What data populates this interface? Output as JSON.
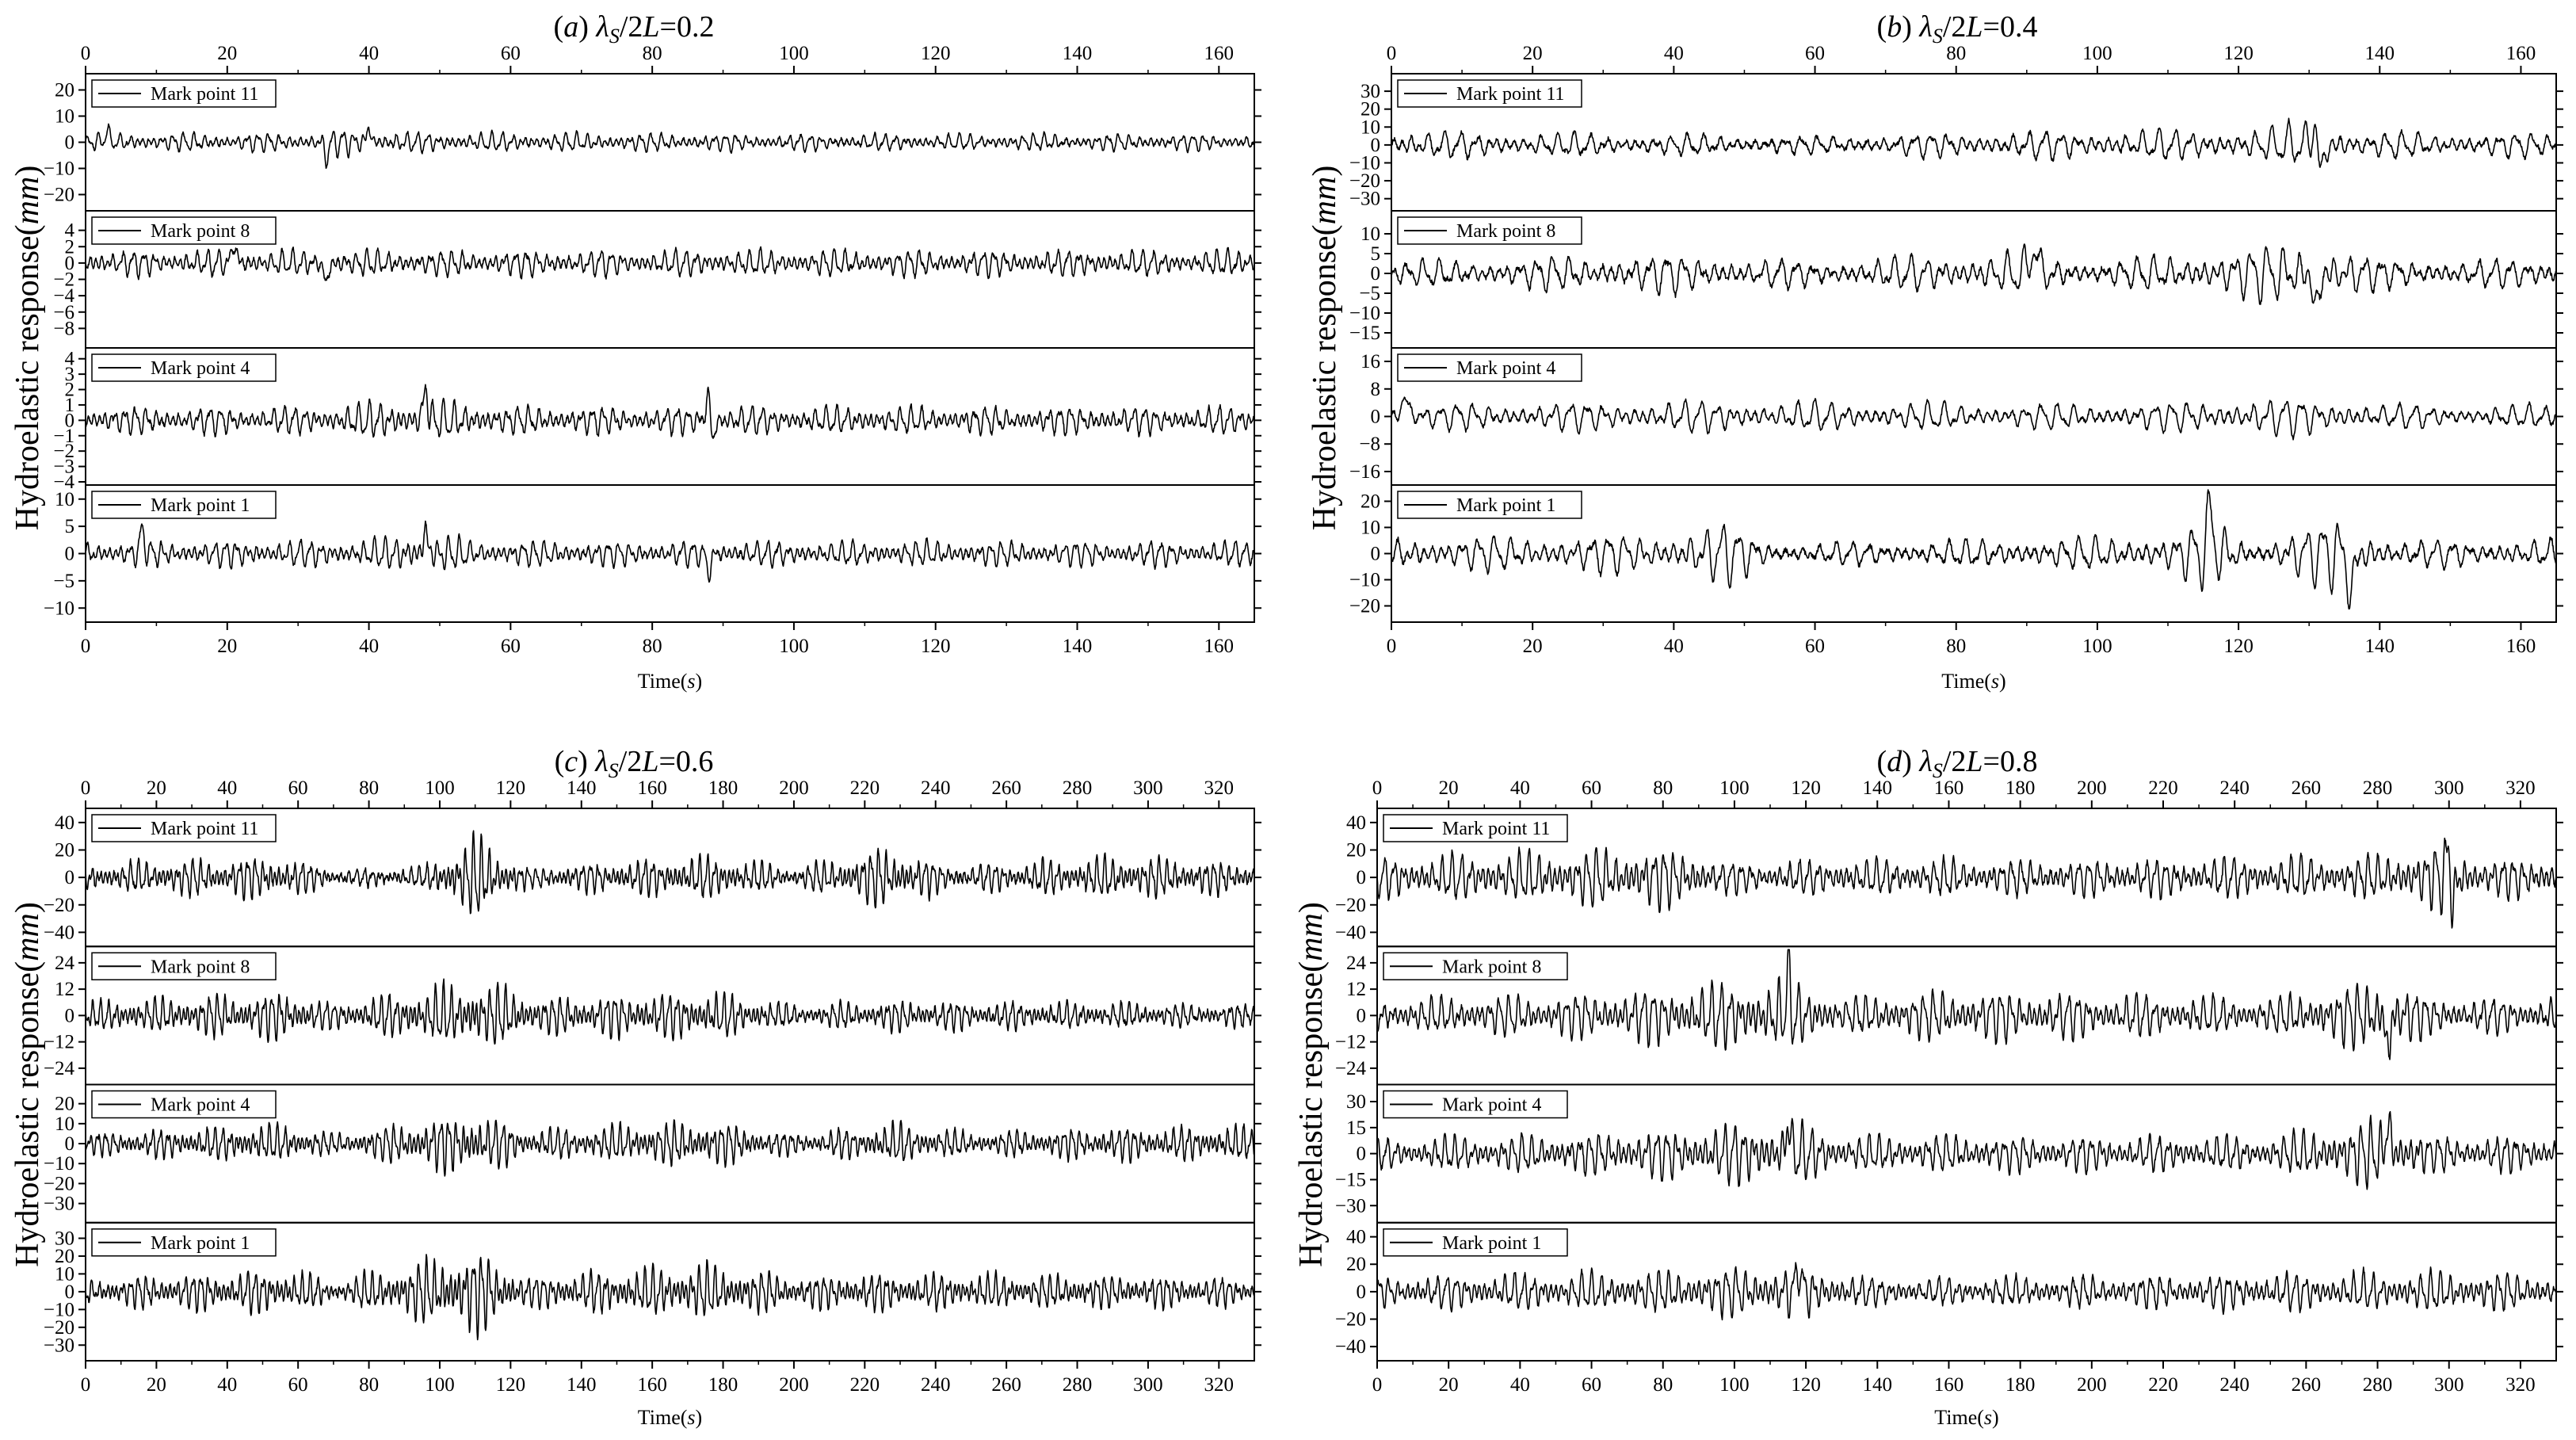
{
  "figure": {
    "y_label_text": "Hydroelastic response",
    "y_label_unit": "mm",
    "x_label_text": "Time",
    "x_label_unit": "s"
  },
  "chart_data": [
    {
      "type": "line",
      "title": "(a) λS/2L=0.2",
      "title_parts": {
        "letter": "a",
        "lambda": "λ",
        "sub": "S",
        "rest": "/2",
        "L": "L",
        "eq": "=0.2"
      },
      "xlabel": "Time(s)",
      "ylabel": "Hydroelastic response(mm)",
      "xlim": [
        0,
        165
      ],
      "xticks": [
        0,
        20,
        40,
        60,
        80,
        100,
        120,
        140,
        160
      ],
      "grid": false,
      "legend_position": "top-left",
      "series": [
        {
          "name": "Mark point 11",
          "ylim": [
            -25,
            25
          ],
          "yticks": [
            -20,
            -10,
            0,
            10,
            20
          ],
          "amplitude": 4,
          "spikes": [
            [
              3,
              6
            ],
            [
              34,
              -8
            ],
            [
              40,
              7
            ]
          ],
          "envelope": [
            [
              0,
              1.0
            ],
            [
              30,
              1.0
            ],
            [
              36,
              1.5
            ],
            [
              45,
              1.1
            ],
            [
              100,
              0.9
            ],
            [
              165,
              0.9
            ]
          ],
          "period": 1.5
        },
        {
          "name": "Mark point 8",
          "ylim": [
            -10,
            6
          ],
          "yticks": [
            -8,
            -6,
            -4,
            -2,
            0,
            2,
            4
          ],
          "amplitude": 1.8,
          "spikes": [
            [
              21,
              3.5
            ],
            [
              34,
              -3.5
            ]
          ],
          "envelope": [
            [
              0,
              1.0
            ],
            [
              165,
              1.0
            ]
          ],
          "period": 1.5
        },
        {
          "name": "Mark point 4",
          "ylim": [
            -4,
            4.5
          ],
          "yticks": [
            -4,
            -3,
            -2,
            -1,
            0,
            1,
            2,
            3,
            4
          ],
          "amplitude": 1.0,
          "spikes": [
            [
              48,
              3
            ],
            [
              88,
              3
            ],
            [
              88.5,
              -2.5
            ]
          ],
          "envelope": [
            [
              0,
              1.0
            ],
            [
              30,
              1.0
            ],
            [
              48,
              1.6
            ],
            [
              60,
              1.0
            ],
            [
              165,
              1.0
            ]
          ],
          "period": 1.5
        },
        {
          "name": "Mark point 1",
          "ylim": [
            -12,
            12
          ],
          "yticks": [
            -10,
            -5,
            0,
            5,
            10
          ],
          "amplitude": 2.6,
          "spikes": [
            [
              8,
              6
            ],
            [
              48,
              6
            ],
            [
              88,
              -5
            ]
          ],
          "envelope": [
            [
              0,
              1.0
            ],
            [
              40,
              1.1
            ],
            [
              48,
              1.8
            ],
            [
              55,
              1.0
            ],
            [
              165,
              1.0
            ]
          ],
          "period": 1.5
        }
      ]
    },
    {
      "type": "line",
      "title": "(b) λS/2L=0.4",
      "title_parts": {
        "letter": "b",
        "lambda": "λ",
        "sub": "S",
        "rest": "/2",
        "L": "L",
        "eq": "=0.4"
      },
      "xlabel": "Time(s)",
      "ylabel": "Hydroelastic response(mm)",
      "xlim": [
        0,
        165
      ],
      "xticks": [
        0,
        20,
        40,
        60,
        80,
        100,
        120,
        140,
        160
      ],
      "grid": false,
      "legend_position": "top-left",
      "series": [
        {
          "name": "Mark point 11",
          "ylim": [
            -35,
            38
          ],
          "yticks": [
            -30,
            -20,
            -10,
            0,
            10,
            20,
            30
          ],
          "amplitude": 9,
          "spikes": [
            [
              131,
              25
            ],
            [
              131.6,
              -30
            ]
          ],
          "envelope": [
            [
              0,
              1.0
            ],
            [
              60,
              0.6
            ],
            [
              80,
              0.9
            ],
            [
              110,
              1.1
            ],
            [
              125,
              1.2
            ],
            [
              131,
              2.0
            ],
            [
              137,
              0.9
            ],
            [
              165,
              0.8
            ]
          ],
          "period": 2.3
        },
        {
          "name": "Mark point 8",
          "ylim": [
            -18,
            15
          ],
          "yticks": [
            -15,
            -10,
            -5,
            0,
            5,
            10
          ],
          "amplitude": 5,
          "spikes": [
            [
              91,
              10
            ],
            [
              131,
              -12
            ]
          ],
          "envelope": [
            [
              0,
              0.7
            ],
            [
              40,
              1.1
            ],
            [
              60,
              0.7
            ],
            [
              90,
              1.3
            ],
            [
              100,
              0.7
            ],
            [
              120,
              1.4
            ],
            [
              131,
              1.9
            ],
            [
              140,
              0.8
            ],
            [
              165,
              0.8
            ]
          ],
          "period": 2.3
        },
        {
          "name": "Mark point 4",
          "ylim": [
            -19,
            19
          ],
          "yticks": [
            -16,
            -8,
            0,
            8,
            16
          ],
          "amplitude": 4,
          "spikes": [
            [
              2,
              8
            ]
          ],
          "envelope": [
            [
              0,
              1.0
            ],
            [
              40,
              1.3
            ],
            [
              100,
              1.0
            ],
            [
              130,
              1.6
            ],
            [
              140,
              1.0
            ],
            [
              165,
              0.9
            ]
          ],
          "period": 2.3
        },
        {
          "name": "Mark point 1",
          "ylim": [
            -25,
            25
          ],
          "yticks": [
            -20,
            -10,
            0,
            10,
            20
          ],
          "amplitude": 7,
          "spikes": [
            [
              116,
              18
            ],
            [
              136,
              -20
            ]
          ],
          "envelope": [
            [
              0,
              1.0
            ],
            [
              40,
              1.2
            ],
            [
              47,
              2.0
            ],
            [
              55,
              0.6
            ],
            [
              100,
              1.0
            ],
            [
              110,
              1.2
            ],
            [
              116,
              2.3
            ],
            [
              122,
              0.6
            ],
            [
              135,
              2.5
            ],
            [
              142,
              0.8
            ],
            [
              165,
              0.9
            ]
          ],
          "period": 2.3
        }
      ]
    },
    {
      "type": "line",
      "title": "(c) λS/2L=0.6",
      "title_parts": {
        "letter": "c",
        "lambda": "λ",
        "sub": "S",
        "rest": "/2",
        "L": "L",
        "eq": "=0.6"
      },
      "xlabel": "Time(s)",
      "ylabel": "Hydroelastic response(mm)",
      "xlim": [
        0,
        330
      ],
      "xticks": [
        0,
        20,
        40,
        60,
        80,
        100,
        120,
        140,
        160,
        180,
        200,
        220,
        240,
        260,
        280,
        300,
        320
      ],
      "grid": false,
      "legend_position": "top-left",
      "series": [
        {
          "name": "Mark point 11",
          "ylim": [
            -48,
            48
          ],
          "yticks": [
            -40,
            -20,
            0,
            20,
            40
          ],
          "amplitude": 14,
          "spikes": [],
          "envelope": [
            [
              0,
              0.8
            ],
            [
              55,
              1.3
            ],
            [
              70,
              0.5
            ],
            [
              95,
              0.6
            ],
            [
              110,
              2.6
            ],
            [
              125,
              0.6
            ],
            [
              175,
              1.3
            ],
            [
              200,
              0.6
            ],
            [
              225,
              1.8
            ],
            [
              245,
              0.7
            ],
            [
              290,
              1.3
            ],
            [
              330,
              0.9
            ]
          ],
          "period": 2.2
        },
        {
          "name": "Mark point 8",
          "ylim": [
            -30,
            30
          ],
          "yticks": [
            -24,
            -12,
            0,
            12,
            24
          ],
          "amplitude": 8,
          "spikes": [],
          "envelope": [
            [
              0,
              0.9
            ],
            [
              57,
              1.6
            ],
            [
              70,
              0.8
            ],
            [
              110,
              2.3
            ],
            [
              130,
              1.2
            ],
            [
              175,
              1.6
            ],
            [
              200,
              0.7
            ],
            [
              225,
              1.0
            ],
            [
              330,
              0.7
            ]
          ],
          "period": 2.2
        },
        {
          "name": "Mark point 4",
          "ylim": [
            -38,
            28
          ],
          "yticks": [
            -30,
            -20,
            -10,
            0,
            10,
            20
          ],
          "amplitude": 8,
          "spikes": [],
          "envelope": [
            [
              0,
              0.8
            ],
            [
              57,
              1.4
            ],
            [
              70,
              0.7
            ],
            [
              110,
              2.3
            ],
            [
              125,
              1.0
            ],
            [
              175,
              1.7
            ],
            [
              200,
              0.7
            ],
            [
              228,
              1.5
            ],
            [
              250,
              0.8
            ],
            [
              290,
              1.2
            ],
            [
              330,
              1.2
            ]
          ],
          "period": 2.2
        },
        {
          "name": "Mark point 1",
          "ylim": [
            -37,
            37
          ],
          "yticks": [
            -30,
            -20,
            -10,
            0,
            10,
            20,
            30
          ],
          "amplitude": 10,
          "spikes": [],
          "envelope": [
            [
              0,
              0.8
            ],
            [
              57,
              1.5
            ],
            [
              70,
              0.7
            ],
            [
              110,
              2.8
            ],
            [
              125,
              1.0
            ],
            [
              175,
              1.8
            ],
            [
              200,
              1.0
            ],
            [
              228,
              1.2
            ],
            [
              330,
              0.9
            ]
          ],
          "period": 2.2
        }
      ]
    },
    {
      "type": "line",
      "title": "(d) λS/2L=0.8",
      "title_parts": {
        "letter": "d",
        "lambda": "λ",
        "sub": "S",
        "rest": "/2",
        "L": "L",
        "eq": "=0.8"
      },
      "xlabel": "Time(s)",
      "ylabel": "Hydroelastic response(mm)",
      "xlim": [
        0,
        330
      ],
      "xticks": [
        0,
        20,
        40,
        60,
        80,
        100,
        120,
        140,
        160,
        180,
        200,
        220,
        240,
        260,
        280,
        300,
        320
      ],
      "grid": false,
      "legend_position": "top-left",
      "series": [
        {
          "name": "Mark point 11",
          "ylim": [
            -48,
            48
          ],
          "yticks": [
            -40,
            -20,
            0,
            20,
            40
          ],
          "amplitude": 15,
          "spikes": [
            [
              300,
              40
            ],
            [
              301,
              -42
            ]
          ],
          "envelope": [
            [
              0,
              1.1
            ],
            [
              80,
              1.7
            ],
            [
              100,
              0.8
            ],
            [
              130,
              1.0
            ],
            [
              200,
              1.0
            ],
            [
              280,
              1.2
            ],
            [
              300,
              2.0
            ],
            [
              310,
              1.0
            ],
            [
              330,
              1.2
            ]
          ],
          "period": 2.7
        },
        {
          "name": "Mark point 8",
          "ylim": [
            -30,
            30
          ],
          "yticks": [
            -24,
            -12,
            0,
            12,
            24
          ],
          "amplitude": 9,
          "spikes": [
            [
              115,
              25
            ],
            [
              283,
              -25
            ]
          ],
          "envelope": [
            [
              0,
              0.9
            ],
            [
              60,
              1.3
            ],
            [
              115,
              2.2
            ],
            [
              130,
              1.0
            ],
            [
              160,
              1.5
            ],
            [
              250,
              1.0
            ],
            [
              283,
              2.2
            ],
            [
              295,
              1.0
            ],
            [
              330,
              1.0
            ]
          ],
          "period": 2.7
        },
        {
          "name": "Mark point 4",
          "ylim": [
            -38,
            38
          ],
          "yticks": [
            -30,
            -15,
            0,
            15,
            30
          ],
          "amplitude": 11,
          "spikes": [
            [
              115,
              28
            ],
            [
              283,
              28
            ]
          ],
          "envelope": [
            [
              0,
              0.9
            ],
            [
              60,
              1.2
            ],
            [
              115,
              2.0
            ],
            [
              130,
              1.1
            ],
            [
              250,
              1.0
            ],
            [
              283,
              2.2
            ],
            [
              295,
              1.0
            ],
            [
              330,
              1.1
            ]
          ],
          "period": 2.7
        },
        {
          "name": "Mark point 1",
          "ylim": [
            -48,
            48
          ],
          "yticks": [
            -40,
            -20,
            0,
            20,
            40
          ],
          "amplitude": 13,
          "spikes": [
            [
              118,
              30
            ]
          ],
          "envelope": [
            [
              0,
              1.0
            ],
            [
              80,
              1.3
            ],
            [
              115,
              1.8
            ],
            [
              140,
              0.8
            ],
            [
              200,
              1.0
            ],
            [
              300,
              1.3
            ],
            [
              330,
              1.0
            ]
          ],
          "period": 2.7
        }
      ]
    }
  ]
}
